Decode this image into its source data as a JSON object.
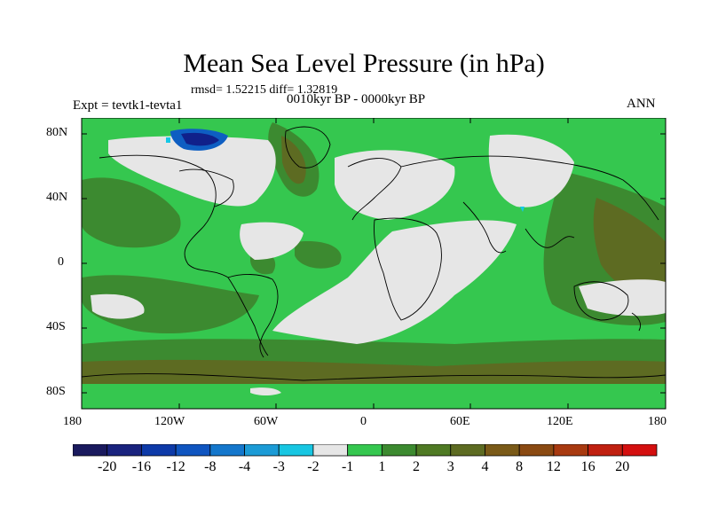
{
  "title": "Mean Sea Level Pressure (in hPa)",
  "stats": "rmsd= 1.52215 diff= 1.32819",
  "experiment": "Expt = tevtk1-tevta1",
  "period": "0010kyr BP - 0000kyr BP",
  "season": "ANN",
  "map": {
    "lat_labels": [
      "80N",
      "40N",
      "0",
      "40S",
      "80S"
    ],
    "lon_labels": [
      "180",
      "120W",
      "60W",
      "0",
      "60E",
      "120E",
      "180"
    ],
    "colors": {
      "ocean_green": "#35c74f",
      "dark_green": "#3c8a30",
      "olive": "#5d6b22",
      "brown": "#7a5a18",
      "light_gray": "#e6e6e6",
      "blue_dark": "#10208a",
      "blue_mid": "#0e5ec2",
      "cyan": "#14c8e6",
      "coast": "#000000"
    }
  },
  "colorbar": {
    "colors": [
      "#1a1a5e",
      "#1a237e",
      "#0d3aa8",
      "#0f55c0",
      "#1477cc",
      "#1b9bd6",
      "#17c6e2",
      "#e6e6e6",
      "#35c74f",
      "#3c8a30",
      "#4f7a24",
      "#5d6b22",
      "#7a5a18",
      "#8a4a12",
      "#a83a10",
      "#c02010",
      "#d40f0f"
    ],
    "labels": [
      "-20",
      "-16",
      "-12",
      "-8",
      "-4",
      "-3",
      "-2",
      "-1",
      "1",
      "2",
      "3",
      "4",
      "8",
      "12",
      "16",
      "20"
    ]
  }
}
